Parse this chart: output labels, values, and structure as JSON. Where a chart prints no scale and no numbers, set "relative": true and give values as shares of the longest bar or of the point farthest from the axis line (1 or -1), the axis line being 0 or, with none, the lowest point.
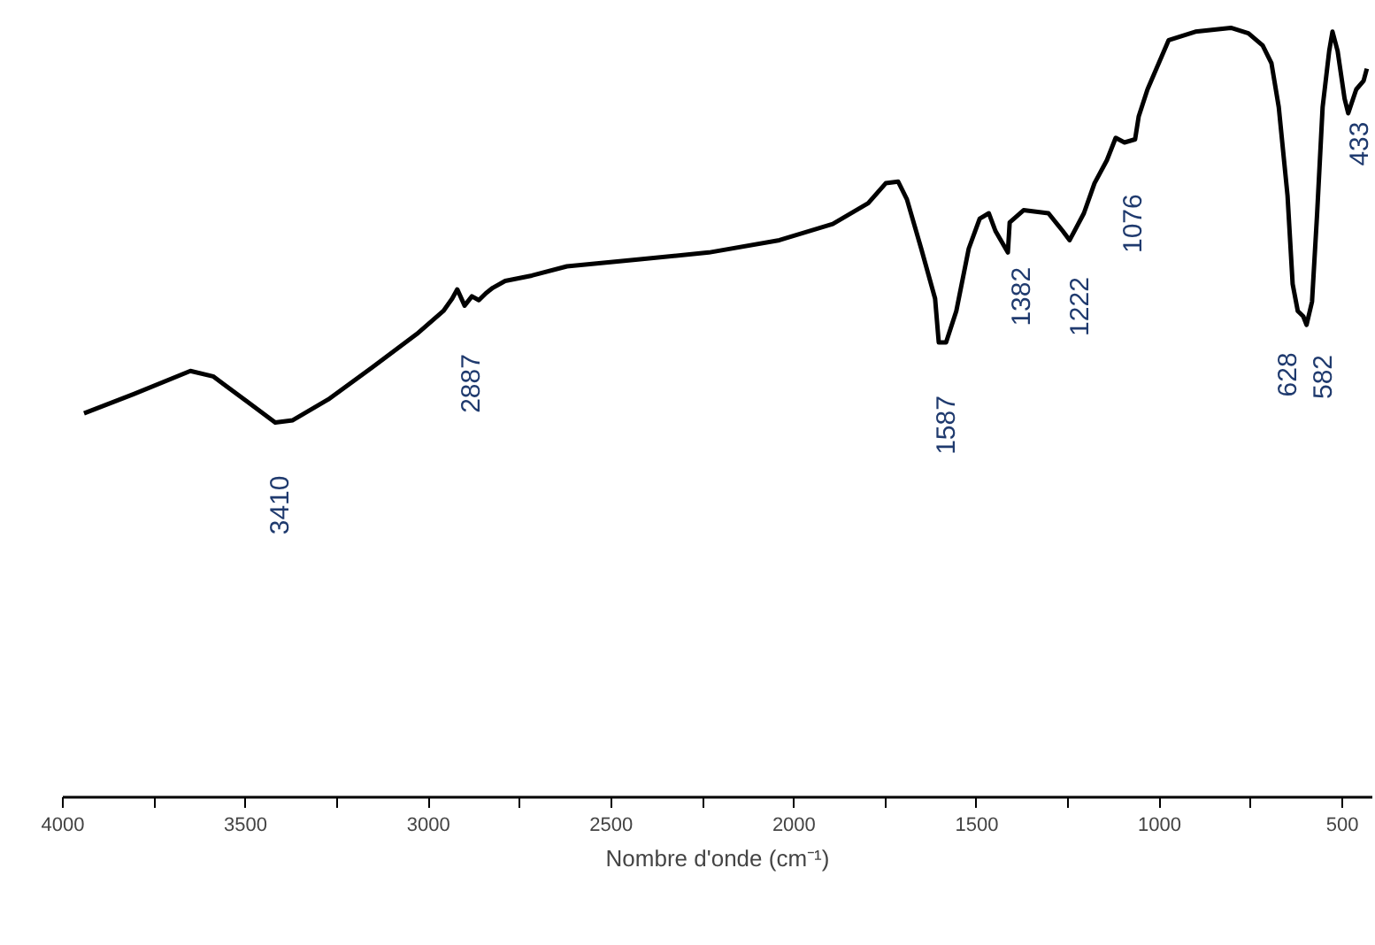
{
  "chart_data": {
    "type": "line",
    "relative": true,
    "xlabel": "Nombre d'onde (cm⁻¹)",
    "xlim": [
      4000,
      418
    ],
    "xticks": [
      4000,
      {
        "value": 3750,
        "label": null
      },
      3500,
      {
        "value": 3250,
        "label": null
      },
      3000,
      {
        "value": 2750,
        "label": null
      },
      2500,
      {
        "value": 2250,
        "label": null
      },
      2000,
      {
        "value": 1750,
        "label": null
      },
      1500,
      {
        "value": 1250,
        "label": null
      },
      1000,
      {
        "value": 750,
        "label": null
      },
      500
    ],
    "grid": false,
    "marker": "none",
    "line_style": "solid",
    "series": [
      {
        "color": "#000000",
        "x": [
          3942,
          3806,
          3651,
          3589,
          3492,
          3419,
          3371,
          3274,
          3153,
          3032,
          2959,
          2935,
          2921,
          2901,
          2881,
          2862,
          2843,
          2824,
          2790,
          2717,
          2621,
          2427,
          2233,
          2040,
          1894,
          1797,
          1749,
          1715,
          1691,
          1652,
          1614,
          1604,
          1584,
          1556,
          1522,
          1492,
          1467,
          1449,
          1415,
          1410,
          1372,
          1304,
          1265,
          1246,
          1207,
          1178,
          1144,
          1120,
          1096,
          1067,
          1057,
          1033,
          975,
          902,
          805,
          757,
          718,
          694,
          674,
          650,
          636,
          622,
          607,
          598,
          583,
          569,
          554,
          536,
          527,
          513,
          494,
          484,
          462,
          442,
          433
        ],
        "values": [
          0.499,
          0.524,
          0.554,
          0.547,
          0.513,
          0.487,
          0.49,
          0.517,
          0.559,
          0.602,
          0.632,
          0.648,
          0.66,
          0.639,
          0.651,
          0.646,
          0.655,
          0.662,
          0.671,
          0.678,
          0.69,
          0.699,
          0.708,
          0.724,
          0.745,
          0.772,
          0.798,
          0.8,
          0.777,
          0.713,
          0.648,
          0.591,
          0.591,
          0.632,
          0.713,
          0.752,
          0.759,
          0.736,
          0.708,
          0.747,
          0.763,
          0.759,
          0.736,
          0.724,
          0.759,
          0.798,
          0.828,
          0.857,
          0.851,
          0.855,
          0.885,
          0.92,
          0.984,
          0.995,
          1,
          0.993,
          0.977,
          0.954,
          0.897,
          0.782,
          0.667,
          0.632,
          0.625,
          0.614,
          0.644,
          0.759,
          0.897,
          0.97,
          0.995,
          0.97,
          0.908,
          0.889,
          0.92,
          0.931,
          0.947
        ]
      }
    ],
    "annotations": [
      {
        "text": "3410",
        "x": 3410,
        "y": 0.487
      },
      {
        "text": "2887",
        "x": 2887,
        "y": 0.645
      },
      {
        "text": "1587",
        "x": 1587,
        "y": 0.591
      },
      {
        "text": "1382",
        "x": 1382,
        "y": 0.758
      },
      {
        "text": "1222",
        "x": 1222,
        "y": 0.745
      },
      {
        "text": "1076",
        "x": 1076,
        "y": 0.853
      },
      {
        "text": "628",
        "x": 628,
        "y": 0.647
      },
      {
        "text": "582",
        "x": 582,
        "y": 0.644
      },
      {
        "text": "433",
        "x": 433,
        "y": 0.947
      }
    ]
  }
}
